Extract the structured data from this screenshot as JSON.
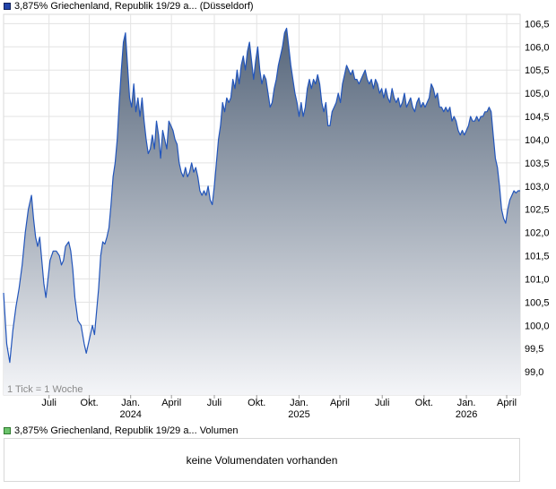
{
  "legend": {
    "price_label": "3,875% Griechenland, Republik 19/29 a... (Düsseldorf)",
    "volume_label": "3,875% Griechenland, Republik 19/29 a... Volumen"
  },
  "volume_panel": {
    "message": "keine Volumendaten vorhanden"
  },
  "colors": {
    "line": "#2255bb",
    "fill_top": "#55657a",
    "fill_bottom": "#f4f5f8",
    "grid": "#e3e3e3"
  },
  "chart_data": {
    "type": "area",
    "title": "",
    "xlabel": "",
    "ylabel": "",
    "ylim": [
      98.5,
      106.7
    ],
    "grid": true,
    "y_ticks": [
      "99,0",
      "99,5",
      "100,0",
      "100,5",
      "101,0",
      "101,5",
      "102,0",
      "102,5",
      "103,0",
      "103,5",
      "104,0",
      "104,5",
      "105,0",
      "105,5",
      "106,0",
      "106,5"
    ],
    "x_ticks": [
      {
        "label": "Juli",
        "year": "",
        "pos": 0.088
      },
      {
        "label": "Okt.",
        "year": "",
        "pos": 0.166
      },
      {
        "label": "Jan.",
        "year": "2024",
        "pos": 0.246
      },
      {
        "label": "April",
        "year": "",
        "pos": 0.325
      },
      {
        "label": "Juli",
        "year": "",
        "pos": 0.408
      },
      {
        "label": "Okt.",
        "year": "",
        "pos": 0.49
      },
      {
        "label": "Jan.",
        "year": "2025",
        "pos": 0.572
      },
      {
        "label": "April",
        "year": "",
        "pos": 0.651
      },
      {
        "label": "Juli",
        "year": "",
        "pos": 0.733
      },
      {
        "label": "Okt.",
        "year": "",
        "pos": 0.814
      },
      {
        "label": "Jan.",
        "year": "2026",
        "pos": 0.896
      },
      {
        "label": "April",
        "year": "",
        "pos": 0.974
      }
    ],
    "annotation": "1 Tick = 1 Woche",
    "series": [
      {
        "points": [
          [
            0.0,
            100.7
          ],
          [
            0.006,
            99.6
          ],
          [
            0.012,
            99.2
          ],
          [
            0.018,
            99.9
          ],
          [
            0.024,
            100.4
          ],
          [
            0.03,
            100.8
          ],
          [
            0.036,
            101.3
          ],
          [
            0.042,
            102.0
          ],
          [
            0.048,
            102.5
          ],
          [
            0.054,
            102.8
          ],
          [
            0.058,
            102.3
          ],
          [
            0.062,
            101.9
          ],
          [
            0.066,
            101.7
          ],
          [
            0.07,
            101.9
          ],
          [
            0.074,
            101.4
          ],
          [
            0.078,
            100.9
          ],
          [
            0.082,
            100.6
          ],
          [
            0.086,
            101.0
          ],
          [
            0.09,
            101.4
          ],
          [
            0.096,
            101.6
          ],
          [
            0.102,
            101.6
          ],
          [
            0.108,
            101.5
          ],
          [
            0.112,
            101.3
          ],
          [
            0.116,
            101.4
          ],
          [
            0.12,
            101.7
          ],
          [
            0.126,
            101.8
          ],
          [
            0.13,
            101.6
          ],
          [
            0.134,
            101.2
          ],
          [
            0.138,
            100.6
          ],
          [
            0.144,
            100.1
          ],
          [
            0.15,
            100.0
          ],
          [
            0.156,
            99.6
          ],
          [
            0.16,
            99.4
          ],
          [
            0.164,
            99.6
          ],
          [
            0.168,
            99.8
          ],
          [
            0.172,
            100.0
          ],
          [
            0.176,
            99.8
          ],
          [
            0.18,
            100.3
          ],
          [
            0.184,
            100.8
          ],
          [
            0.188,
            101.5
          ],
          [
            0.192,
            101.8
          ],
          [
            0.196,
            101.75
          ],
          [
            0.2,
            101.9
          ],
          [
            0.204,
            102.1
          ],
          [
            0.208,
            102.6
          ],
          [
            0.212,
            103.2
          ],
          [
            0.216,
            103.5
          ],
          [
            0.22,
            104.0
          ],
          [
            0.224,
            104.8
          ],
          [
            0.228,
            105.5
          ],
          [
            0.232,
            106.1
          ],
          [
            0.236,
            106.3
          ],
          [
            0.24,
            105.6
          ],
          [
            0.244,
            104.9
          ],
          [
            0.248,
            104.7
          ],
          [
            0.252,
            105.2
          ],
          [
            0.256,
            104.6
          ],
          [
            0.26,
            104.9
          ],
          [
            0.264,
            104.5
          ],
          [
            0.268,
            104.9
          ],
          [
            0.272,
            104.4
          ],
          [
            0.276,
            104.0
          ],
          [
            0.28,
            103.7
          ],
          [
            0.284,
            103.8
          ],
          [
            0.288,
            104.1
          ],
          [
            0.292,
            103.8
          ],
          [
            0.296,
            104.4
          ],
          [
            0.3,
            104.1
          ],
          [
            0.304,
            103.6
          ],
          [
            0.308,
            104.2
          ],
          [
            0.312,
            104.0
          ],
          [
            0.316,
            103.8
          ],
          [
            0.32,
            104.4
          ],
          [
            0.324,
            104.3
          ],
          [
            0.328,
            104.2
          ],
          [
            0.332,
            104.0
          ],
          [
            0.336,
            103.9
          ],
          [
            0.34,
            103.5
          ],
          [
            0.344,
            103.3
          ],
          [
            0.348,
            103.2
          ],
          [
            0.352,
            103.4
          ],
          [
            0.356,
            103.2
          ],
          [
            0.36,
            103.3
          ],
          [
            0.364,
            103.5
          ],
          [
            0.368,
            103.3
          ],
          [
            0.372,
            103.4
          ],
          [
            0.376,
            103.2
          ],
          [
            0.38,
            102.9
          ],
          [
            0.384,
            102.8
          ],
          [
            0.388,
            102.9
          ],
          [
            0.392,
            102.8
          ],
          [
            0.396,
            103.0
          ],
          [
            0.4,
            102.7
          ],
          [
            0.404,
            102.6
          ],
          [
            0.408,
            103.0
          ],
          [
            0.412,
            103.5
          ],
          [
            0.416,
            104.0
          ],
          [
            0.42,
            104.3
          ],
          [
            0.424,
            104.8
          ],
          [
            0.428,
            104.6
          ],
          [
            0.432,
            104.9
          ],
          [
            0.436,
            104.8
          ],
          [
            0.44,
            104.9
          ],
          [
            0.444,
            105.3
          ],
          [
            0.448,
            105.1
          ],
          [
            0.452,
            105.5
          ],
          [
            0.456,
            105.2
          ],
          [
            0.46,
            105.6
          ],
          [
            0.464,
            105.8
          ],
          [
            0.468,
            105.5
          ],
          [
            0.472,
            105.9
          ],
          [
            0.476,
            106.1
          ],
          [
            0.48,
            105.7
          ],
          [
            0.484,
            105.3
          ],
          [
            0.488,
            105.7
          ],
          [
            0.492,
            106.0
          ],
          [
            0.496,
            105.5
          ],
          [
            0.5,
            105.2
          ],
          [
            0.504,
            105.4
          ],
          [
            0.508,
            105.3
          ],
          [
            0.512,
            105.0
          ],
          [
            0.516,
            104.7
          ],
          [
            0.52,
            104.8
          ],
          [
            0.524,
            105.1
          ],
          [
            0.528,
            105.3
          ],
          [
            0.532,
            105.6
          ],
          [
            0.536,
            105.8
          ],
          [
            0.54,
            106.0
          ],
          [
            0.544,
            106.3
          ],
          [
            0.548,
            106.4
          ],
          [
            0.552,
            106.0
          ],
          [
            0.556,
            105.6
          ],
          [
            0.56,
            105.3
          ],
          [
            0.564,
            105.0
          ],
          [
            0.568,
            104.8
          ],
          [
            0.572,
            104.5
          ],
          [
            0.576,
            104.8
          ],
          [
            0.58,
            104.5
          ],
          [
            0.584,
            104.7
          ],
          [
            0.588,
            105.1
          ],
          [
            0.592,
            105.3
          ],
          [
            0.596,
            105.1
          ],
          [
            0.6,
            105.3
          ],
          [
            0.604,
            105.2
          ],
          [
            0.608,
            105.4
          ],
          [
            0.612,
            105.2
          ],
          [
            0.616,
            104.8
          ],
          [
            0.62,
            104.6
          ],
          [
            0.624,
            104.8
          ],
          [
            0.628,
            104.3
          ],
          [
            0.632,
            104.3
          ],
          [
            0.636,
            104.6
          ],
          [
            0.64,
            104.7
          ],
          [
            0.644,
            104.8
          ],
          [
            0.648,
            105.0
          ],
          [
            0.652,
            104.8
          ],
          [
            0.656,
            105.2
          ],
          [
            0.66,
            105.4
          ],
          [
            0.664,
            105.6
          ],
          [
            0.668,
            105.5
          ],
          [
            0.672,
            105.4
          ],
          [
            0.676,
            105.5
          ],
          [
            0.68,
            105.3
          ],
          [
            0.684,
            105.3
          ],
          [
            0.688,
            105.2
          ],
          [
            0.692,
            105.3
          ],
          [
            0.696,
            105.4
          ],
          [
            0.7,
            105.5
          ],
          [
            0.704,
            105.3
          ],
          [
            0.708,
            105.2
          ],
          [
            0.712,
            105.3
          ],
          [
            0.716,
            105.1
          ],
          [
            0.72,
            105.3
          ],
          [
            0.724,
            105.2
          ],
          [
            0.728,
            105.0
          ],
          [
            0.732,
            105.1
          ],
          [
            0.736,
            104.9
          ],
          [
            0.74,
            105.1
          ],
          [
            0.744,
            104.9
          ],
          [
            0.748,
            104.8
          ],
          [
            0.752,
            105.1
          ],
          [
            0.756,
            104.9
          ],
          [
            0.76,
            104.8
          ],
          [
            0.764,
            104.9
          ],
          [
            0.768,
            104.7
          ],
          [
            0.772,
            104.8
          ],
          [
            0.776,
            105.0
          ],
          [
            0.78,
            104.7
          ],
          [
            0.784,
            104.8
          ],
          [
            0.788,
            104.9
          ],
          [
            0.792,
            104.7
          ],
          [
            0.796,
            104.6
          ],
          [
            0.8,
            104.8
          ],
          [
            0.804,
            104.9
          ],
          [
            0.808,
            104.7
          ],
          [
            0.812,
            104.8
          ],
          [
            0.816,
            104.7
          ],
          [
            0.82,
            104.8
          ],
          [
            0.824,
            104.9
          ],
          [
            0.828,
            105.2
          ],
          [
            0.832,
            105.1
          ],
          [
            0.836,
            104.9
          ],
          [
            0.84,
            105.0
          ],
          [
            0.844,
            104.7
          ],
          [
            0.848,
            104.7
          ],
          [
            0.852,
            104.6
          ],
          [
            0.856,
            104.7
          ],
          [
            0.86,
            104.6
          ],
          [
            0.864,
            104.7
          ],
          [
            0.868,
            104.4
          ],
          [
            0.872,
            104.5
          ],
          [
            0.876,
            104.4
          ],
          [
            0.88,
            104.2
          ],
          [
            0.884,
            104.1
          ],
          [
            0.888,
            104.2
          ],
          [
            0.892,
            104.1
          ],
          [
            0.896,
            104.2
          ],
          [
            0.9,
            104.3
          ],
          [
            0.904,
            104.5
          ],
          [
            0.908,
            104.4
          ],
          [
            0.912,
            104.4
          ],
          [
            0.916,
            104.5
          ],
          [
            0.92,
            104.4
          ],
          [
            0.924,
            104.5
          ],
          [
            0.928,
            104.5
          ],
          [
            0.932,
            104.6
          ],
          [
            0.936,
            104.6
          ],
          [
            0.94,
            104.7
          ],
          [
            0.944,
            104.6
          ],
          [
            0.948,
            104.1
          ],
          [
            0.952,
            103.6
          ],
          [
            0.956,
            103.4
          ],
          [
            0.96,
            103.0
          ],
          [
            0.964,
            102.5
          ],
          [
            0.968,
            102.3
          ],
          [
            0.972,
            102.2
          ],
          [
            0.976,
            102.5
          ],
          [
            0.98,
            102.7
          ],
          [
            0.984,
            102.8
          ],
          [
            0.988,
            102.9
          ],
          [
            0.992,
            102.85
          ],
          [
            0.996,
            102.9
          ],
          [
            1.0,
            102.9
          ]
        ]
      }
    ]
  }
}
